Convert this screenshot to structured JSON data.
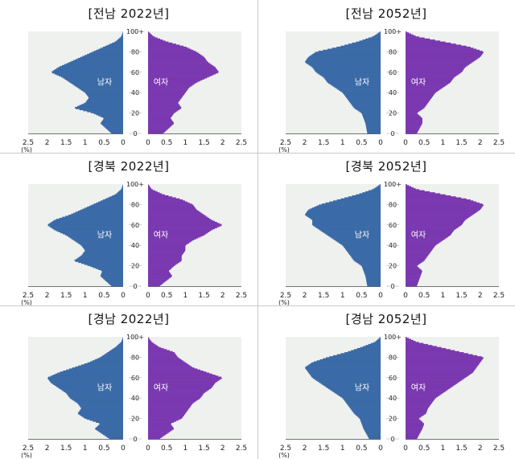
{
  "chart_data": [
    {
      "type": "bar",
      "orientation": "horizontal-population-pyramid",
      "title": "[전남 2022년]",
      "male_label": "남자",
      "female_label": "여자",
      "age_ticks": [
        "0",
        "20",
        "40",
        "60",
        "80",
        "100+"
      ],
      "x_ticks_left": [
        "2.5",
        "2",
        "1.5",
        "1",
        "0.5",
        "0"
      ],
      "x_ticks_right": [
        "0",
        "0.5",
        "1",
        "1.5",
        "2",
        "2.5"
      ],
      "x_unit": "(%)",
      "xlim": [
        0,
        2.5
      ],
      "ylim": [
        0,
        100
      ],
      "series": [
        {
          "name": "남자",
          "ages": [
            0,
            10,
            15,
            20,
            25,
            30,
            35,
            40,
            45,
            50,
            55,
            60,
            65,
            70,
            75,
            80,
            85,
            90,
            95,
            100
          ],
          "values": [
            0.3,
            0.6,
            0.5,
            0.8,
            1.3,
            1.0,
            0.9,
            1.0,
            1.2,
            1.4,
            1.6,
            1.9,
            1.7,
            1.4,
            1.1,
            0.8,
            0.5,
            0.2,
            0.05,
            0.0
          ]
        },
        {
          "name": "여자",
          "ages": [
            0,
            10,
            15,
            20,
            25,
            30,
            35,
            40,
            45,
            50,
            55,
            60,
            65,
            70,
            75,
            80,
            85,
            90,
            95,
            100
          ],
          "values": [
            0.4,
            0.7,
            0.6,
            0.7,
            0.9,
            0.8,
            0.9,
            1.0,
            1.1,
            1.3,
            1.6,
            1.9,
            1.8,
            1.6,
            1.5,
            1.3,
            1.0,
            0.5,
            0.15,
            0.0
          ]
        }
      ]
    },
    {
      "type": "bar",
      "orientation": "horizontal-population-pyramid",
      "title": "[전남 2052년]",
      "male_label": "남자",
      "female_label": "여자",
      "age_ticks": [
        "0",
        "20",
        "40",
        "60",
        "80",
        "100+"
      ],
      "x_ticks_left": [
        "2.5",
        "2",
        "1.5",
        "1",
        "0.5",
        "0"
      ],
      "x_ticks_right": [
        "0",
        "0.5",
        "1",
        "1.5",
        "2",
        "2.5"
      ],
      "x_unit": "(%)",
      "xlim": [
        0,
        2.5
      ],
      "ylim": [
        0,
        100
      ],
      "series": [
        {
          "name": "남자",
          "ages": [
            0,
            10,
            15,
            20,
            25,
            30,
            35,
            40,
            45,
            50,
            55,
            60,
            65,
            70,
            75,
            80,
            85,
            90,
            95,
            100
          ],
          "values": [
            0.35,
            0.4,
            0.45,
            0.5,
            0.7,
            0.8,
            0.9,
            1.0,
            1.2,
            1.4,
            1.5,
            1.7,
            1.8,
            2.0,
            1.9,
            1.7,
            1.1,
            0.6,
            0.2,
            0.0
          ]
        },
        {
          "name": "여자",
          "ages": [
            0,
            10,
            15,
            20,
            25,
            30,
            35,
            40,
            45,
            50,
            55,
            60,
            65,
            70,
            75,
            80,
            85,
            90,
            95,
            100
          ],
          "values": [
            0.3,
            0.45,
            0.45,
            0.3,
            0.5,
            0.6,
            0.7,
            0.8,
            1.0,
            1.2,
            1.3,
            1.5,
            1.6,
            1.8,
            2.0,
            2.1,
            1.7,
            1.0,
            0.3,
            0.0
          ]
        }
      ]
    },
    {
      "type": "bar",
      "orientation": "horizontal-population-pyramid",
      "title": "[경북 2022년]",
      "male_label": "남자",
      "female_label": "여자",
      "age_ticks": [
        "0",
        "20",
        "40",
        "60",
        "80",
        "100+"
      ],
      "x_ticks_left": [
        "2.5",
        "2",
        "1.5",
        "1",
        "0.5",
        "0"
      ],
      "x_ticks_right": [
        "0",
        "0.5",
        "1",
        "1.5",
        "2",
        "2.5"
      ],
      "x_unit": "(%)",
      "xlim": [
        0,
        2.5
      ],
      "ylim": [
        0,
        100
      ],
      "series": [
        {
          "name": "남자",
          "ages": [
            0,
            10,
            15,
            20,
            25,
            30,
            35,
            40,
            45,
            50,
            55,
            60,
            65,
            70,
            75,
            80,
            85,
            90,
            95,
            100
          ],
          "values": [
            0.3,
            0.6,
            0.55,
            0.9,
            1.3,
            1.1,
            1.0,
            1.1,
            1.3,
            1.5,
            1.8,
            2.0,
            1.8,
            1.4,
            1.1,
            0.8,
            0.5,
            0.2,
            0.05,
            0.0
          ]
        },
        {
          "name": "여자",
          "ages": [
            0,
            10,
            15,
            20,
            25,
            30,
            35,
            40,
            45,
            50,
            55,
            60,
            65,
            70,
            75,
            80,
            85,
            90,
            95,
            100
          ],
          "values": [
            0.3,
            0.65,
            0.55,
            0.7,
            0.9,
            0.9,
            1.0,
            1.0,
            1.2,
            1.5,
            1.7,
            2.0,
            1.7,
            1.5,
            1.3,
            1.2,
            0.9,
            0.4,
            0.1,
            0.0
          ]
        }
      ]
    },
    {
      "type": "bar",
      "orientation": "horizontal-population-pyramid",
      "title": "[경북 2052년]",
      "male_label": "남자",
      "female_label": "여자",
      "age_ticks": [
        "0",
        "20",
        "40",
        "60",
        "80",
        "100+"
      ],
      "x_ticks_left": [
        "2.5",
        "2",
        "1.5",
        "1",
        "0.5",
        "0"
      ],
      "x_ticks_right": [
        "0",
        "0.5",
        "1",
        "1.5",
        "2",
        "2.5"
      ],
      "x_unit": "(%)",
      "xlim": [
        0,
        2.5
      ],
      "ylim": [
        0,
        100
      ],
      "series": [
        {
          "name": "남자",
          "ages": [
            0,
            10,
            15,
            20,
            25,
            30,
            35,
            40,
            45,
            50,
            55,
            60,
            65,
            70,
            75,
            80,
            85,
            90,
            95,
            100
          ],
          "values": [
            0.35,
            0.4,
            0.45,
            0.5,
            0.7,
            0.8,
            0.9,
            1.0,
            1.2,
            1.4,
            1.6,
            1.8,
            1.8,
            2.0,
            1.9,
            1.6,
            1.1,
            0.6,
            0.2,
            0.0
          ]
        },
        {
          "name": "여자",
          "ages": [
            0,
            10,
            15,
            20,
            25,
            30,
            35,
            40,
            45,
            50,
            55,
            60,
            65,
            70,
            75,
            80,
            85,
            90,
            95,
            100
          ],
          "values": [
            0.3,
            0.4,
            0.45,
            0.3,
            0.5,
            0.6,
            0.7,
            0.8,
            1.0,
            1.2,
            1.3,
            1.5,
            1.6,
            1.8,
            2.0,
            2.1,
            1.7,
            1.0,
            0.3,
            0.0
          ]
        }
      ]
    },
    {
      "type": "bar",
      "orientation": "horizontal-population-pyramid",
      "title": "[경남 2022년]",
      "male_label": "남자",
      "female_label": "여자",
      "age_ticks": [
        "0",
        "20",
        "40",
        "60",
        "80",
        "100+"
      ],
      "x_ticks_left": [
        "2.5",
        "2",
        "1.5",
        "1",
        "0.5",
        "0"
      ],
      "x_ticks_right": [
        "0",
        "0.5",
        "1",
        "1.5",
        "2",
        "2.5"
      ],
      "x_unit": "(%)",
      "xlim": [
        0,
        2.5
      ],
      "ylim": [
        0,
        100
      ],
      "series": [
        {
          "name": "남자",
          "ages": [
            0,
            10,
            15,
            20,
            25,
            30,
            35,
            40,
            45,
            50,
            55,
            60,
            65,
            70,
            75,
            80,
            85,
            90,
            95,
            100
          ],
          "values": [
            0.35,
            0.75,
            0.6,
            1.0,
            1.2,
            1.1,
            1.2,
            1.4,
            1.5,
            1.7,
            1.9,
            2.0,
            1.7,
            1.3,
            0.9,
            0.6,
            0.4,
            0.2,
            0.05,
            0.0
          ]
        },
        {
          "name": "여자",
          "ages": [
            0,
            10,
            15,
            20,
            25,
            30,
            35,
            40,
            45,
            50,
            55,
            60,
            65,
            70,
            75,
            80,
            85,
            90,
            95,
            100
          ],
          "values": [
            0.3,
            0.7,
            0.6,
            0.9,
            1.0,
            1.1,
            1.2,
            1.4,
            1.5,
            1.7,
            1.8,
            2.0,
            1.6,
            1.2,
            1.0,
            0.8,
            0.7,
            0.3,
            0.1,
            0.0
          ]
        }
      ]
    },
    {
      "type": "bar",
      "orientation": "horizontal-population-pyramid",
      "title": "[경남 2052년]",
      "male_label": "남자",
      "female_label": "여자",
      "age_ticks": [
        "0",
        "20",
        "40",
        "60",
        "80",
        "100+"
      ],
      "x_ticks_left": [
        "2.5",
        "2",
        "1.5",
        "1",
        "0.5",
        "0"
      ],
      "x_ticks_right": [
        "0",
        "0.5",
        "1",
        "1.5",
        "2",
        "2.5"
      ],
      "x_unit": "(%)",
      "xlim": [
        0,
        2.5
      ],
      "ylim": [
        0,
        100
      ],
      "series": [
        {
          "name": "남자",
          "ages": [
            0,
            10,
            15,
            20,
            25,
            30,
            35,
            40,
            45,
            50,
            55,
            60,
            65,
            70,
            75,
            80,
            85,
            90,
            95,
            100
          ],
          "values": [
            0.3,
            0.45,
            0.5,
            0.55,
            0.7,
            0.8,
            0.9,
            1.0,
            1.2,
            1.4,
            1.6,
            1.8,
            1.9,
            2.0,
            1.8,
            1.4,
            0.9,
            0.5,
            0.15,
            0.0
          ]
        },
        {
          "name": "여자",
          "ages": [
            0,
            10,
            15,
            20,
            25,
            30,
            35,
            40,
            45,
            50,
            55,
            60,
            65,
            70,
            75,
            80,
            85,
            90,
            95,
            100
          ],
          "values": [
            0.3,
            0.45,
            0.5,
            0.35,
            0.55,
            0.6,
            0.7,
            0.8,
            1.0,
            1.2,
            1.4,
            1.6,
            1.8,
            1.9,
            2.0,
            2.1,
            1.5,
            0.9,
            0.3,
            0.0
          ]
        }
      ]
    }
  ],
  "colors": {
    "male": "#3a6aa7",
    "female": "#7a38b0",
    "plot_bg": "#eef1ee"
  }
}
